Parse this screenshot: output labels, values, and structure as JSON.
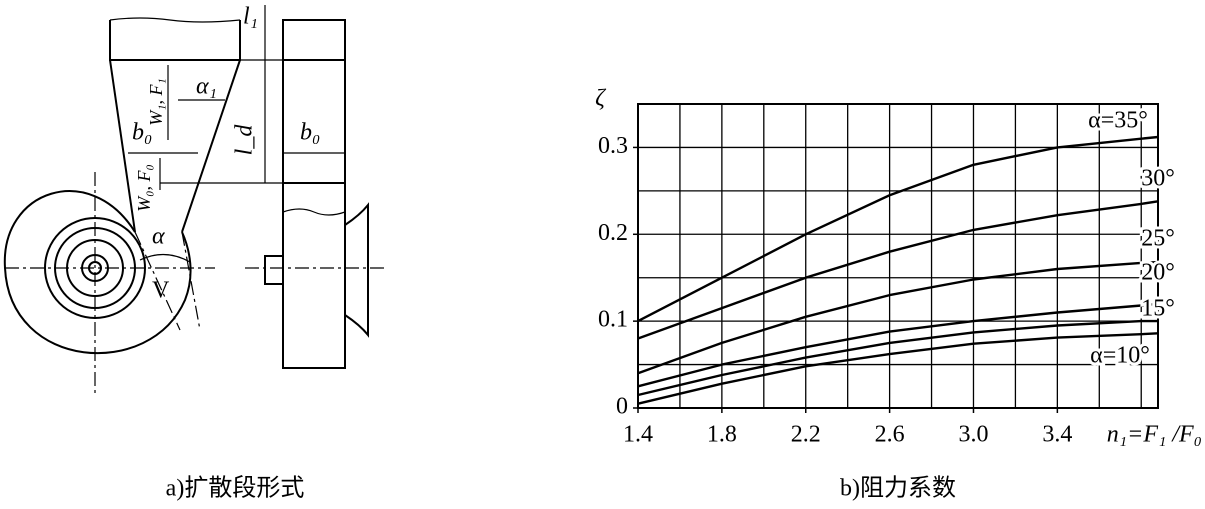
{
  "diagram": {
    "caption": "a)扩散段形式",
    "labels": {
      "l1": "l₁",
      "alpha1": "α₁",
      "w1f1": "W₁, F₁",
      "b0_left": "b₀",
      "ld": "l_d",
      "b0_right": "b₀",
      "w0f0": "W₀, F₀",
      "alpha": "α",
      "v": "V"
    }
  },
  "chart_data": {
    "type": "line",
    "caption": "b)阻力系数",
    "y_label": "ζ",
    "x_label": "n₁=F₁ /F₀",
    "x": [
      1.4,
      1.8,
      2.2,
      2.6,
      3.0,
      3.4,
      3.8,
      3.88
    ],
    "series": [
      {
        "name": "α=35°",
        "color": "#000000",
        "values": [
          0.1,
          0.15,
          0.2,
          0.245,
          0.28,
          0.3,
          0.31,
          0.312
        ]
      },
      {
        "name": "30°",
        "color": "#000000",
        "values": [
          0.08,
          0.115,
          0.15,
          0.18,
          0.205,
          0.222,
          0.235,
          0.238
        ]
      },
      {
        "name": "25°",
        "color": "#000000",
        "values": [
          0.04,
          0.075,
          0.105,
          0.13,
          0.148,
          0.16,
          0.167,
          0.168
        ]
      },
      {
        "name": "20°",
        "color": "#000000",
        "values": [
          0.025,
          0.05,
          0.07,
          0.088,
          0.1,
          0.11,
          0.118,
          0.12
        ]
      },
      {
        "name": "15°",
        "color": "#000000",
        "values": [
          0.015,
          0.038,
          0.058,
          0.075,
          0.087,
          0.095,
          0.1,
          0.1
        ]
      },
      {
        "name": "α=10°",
        "color": "#000000",
        "values": [
          0.005,
          0.028,
          0.048,
          0.062,
          0.074,
          0.081,
          0.085,
          0.086
        ]
      }
    ],
    "xlim": [
      1.4,
      3.88
    ],
    "ylim": [
      0,
      0.35
    ],
    "xticks": [
      1.4,
      1.8,
      2.2,
      2.6,
      {
        "value": 3,
        "label": "3.0"
      },
      3.4
    ],
    "yticks": [
      0,
      0.1,
      0.2,
      0.3
    ],
    "xgrid": [
      1.4,
      1.6,
      1.8,
      2.0,
      2.2,
      2.4,
      2.6,
      2.8,
      3.0,
      3.2,
      3.4,
      3.6,
      3.8
    ],
    "ygrid": [
      0.05,
      0.1,
      0.15,
      0.2,
      0.25,
      0.3,
      0.35
    ]
  }
}
